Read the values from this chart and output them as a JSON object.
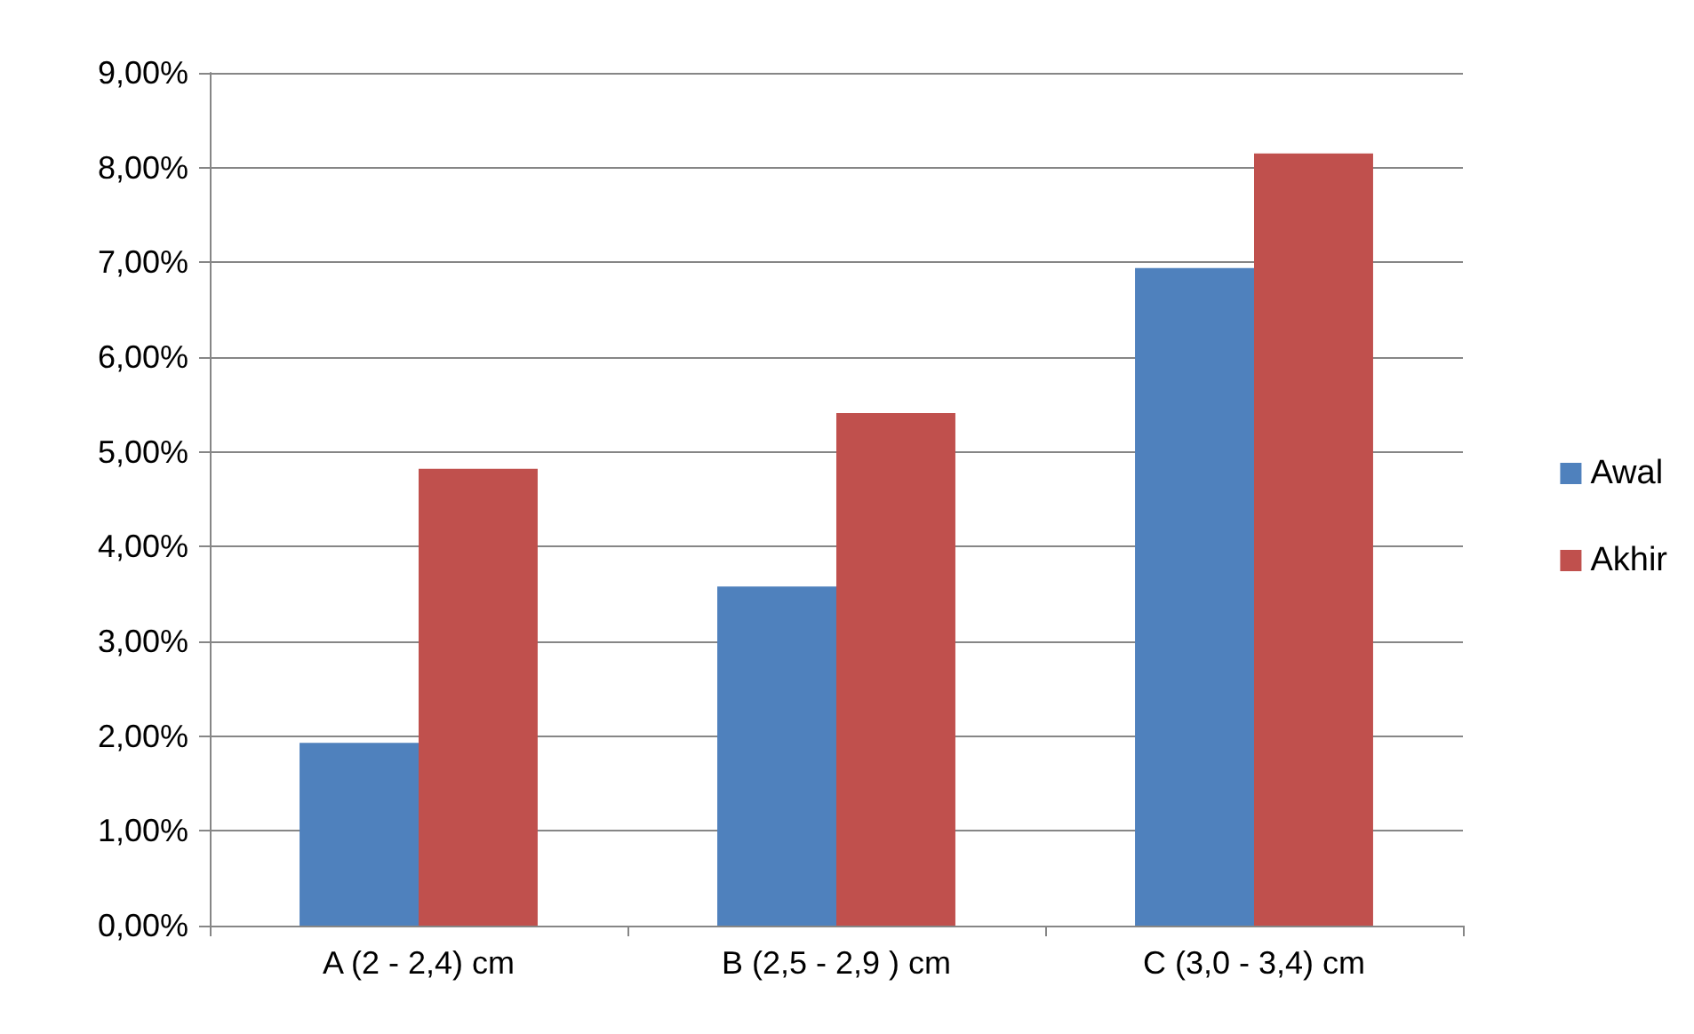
{
  "chart_data": {
    "type": "bar",
    "categories": [
      "A (2 - 2,4) cm",
      "B (2,5 - 2,9 ) cm",
      "C (3,0 - 3,4) cm"
    ],
    "series": [
      {
        "name": "Awal",
        "color": "#4f81bd",
        "values": [
          1.93,
          3.58,
          6.94
        ]
      },
      {
        "name": "Akhir",
        "color": "#c0504d",
        "values": [
          4.82,
          5.41,
          8.15
        ]
      }
    ],
    "ylim": [
      0,
      9
    ],
    "yticks": [
      {
        "value": 0,
        "label": "0,00%"
      },
      {
        "value": 1,
        "label": "1,00%"
      },
      {
        "value": 2,
        "label": "2,00%"
      },
      {
        "value": 3,
        "label": "3,00%"
      },
      {
        "value": 4,
        "label": "4,00%"
      },
      {
        "value": 5,
        "label": "5,00%"
      },
      {
        "value": 6,
        "label": "6,00%"
      },
      {
        "value": 7,
        "label": "7,00%"
      },
      {
        "value": 8,
        "label": "8,00%"
      },
      {
        "value": 9,
        "label": "9,00%"
      }
    ],
    "grid": "y",
    "legend": "right"
  }
}
